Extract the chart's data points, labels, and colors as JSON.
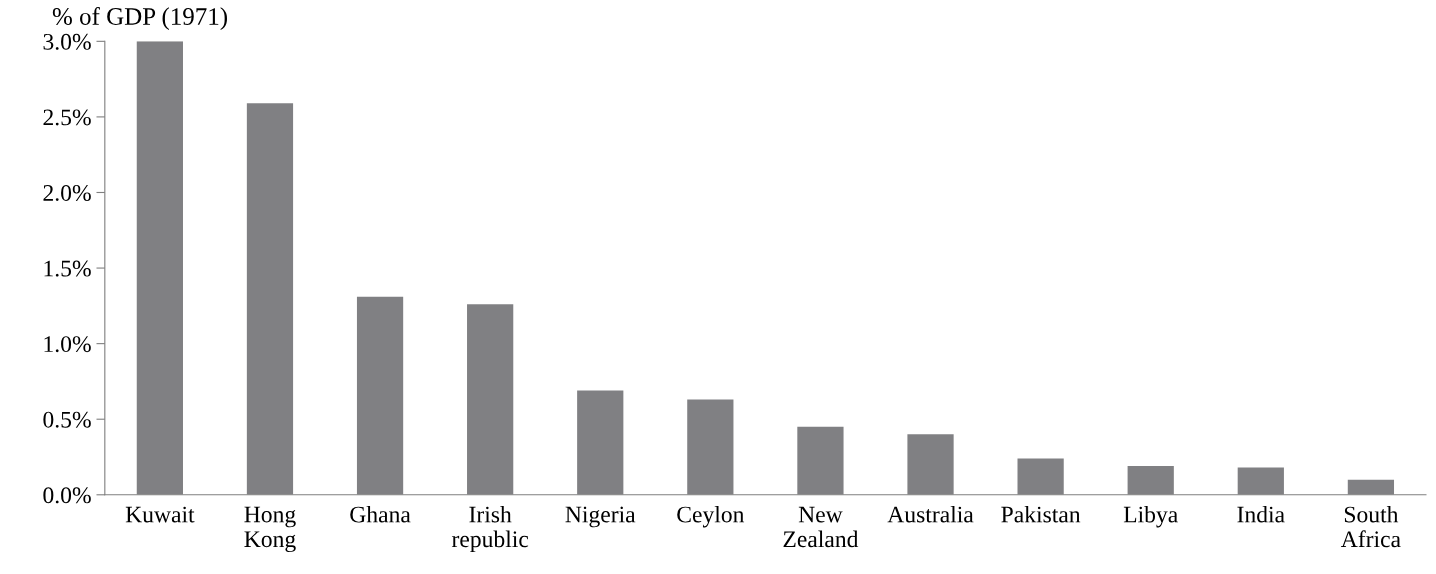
{
  "chart_data": {
    "type": "bar",
    "ylabel": "% of GDP (1971)",
    "categories": [
      "Kuwait",
      "Hong Kong",
      "Ghana",
      "Irish republic",
      "Nigeria",
      "Ceylon",
      "New Zealand",
      "Australia",
      "Pakistan",
      "Libya",
      "India",
      "South Africa"
    ],
    "values": [
      3.0,
      2.59,
      1.31,
      1.26,
      0.69,
      0.63,
      0.45,
      0.4,
      0.24,
      0.19,
      0.18,
      0.1
    ],
    "color": "#808083",
    "ylim": [
      0,
      3.0
    ],
    "yticks": [
      {
        "value": 0,
        "label": "0.0%"
      },
      {
        "value": 0.5,
        "label": "0.5%"
      },
      {
        "value": 1.0,
        "label": "1.0%"
      },
      {
        "value": 1.5,
        "label": "1.5%"
      },
      {
        "value": 2.0,
        "label": "2.0%"
      },
      {
        "value": 2.5,
        "label": "2.5%"
      },
      {
        "value": 3.0,
        "label": "3.0%"
      }
    ],
    "grid": false,
    "legend": false
  }
}
